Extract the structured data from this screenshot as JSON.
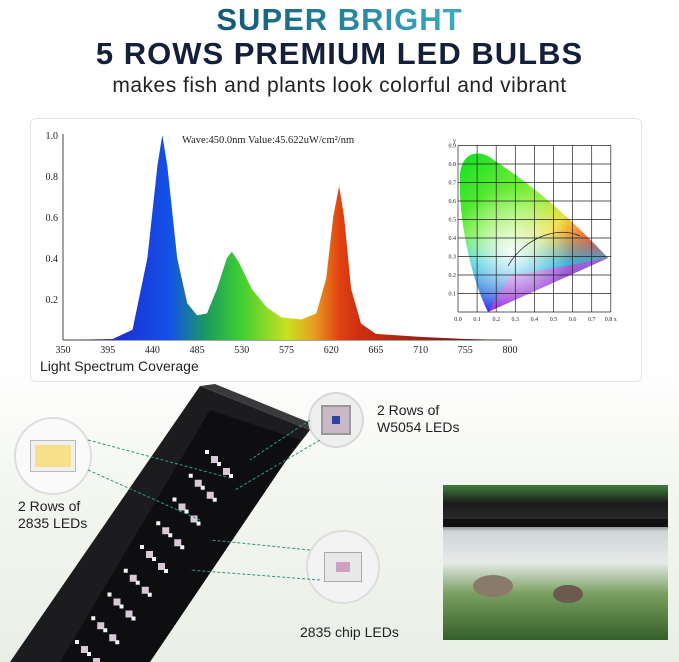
{
  "headline": {
    "line1": "SUPER BRIGHT",
    "line2": "5 ROWS PREMIUM LED BULBS",
    "tagline": "makes fish and plants look colorful and vibrant"
  },
  "spectrum": {
    "readout": "Wave:450.0nm   Value:45.622uW/cm²/nm",
    "caption": "Light Spectrum Coverage",
    "x_ticks": [
      "350",
      "395",
      "440",
      "485",
      "530",
      "575",
      "620",
      "665",
      "710",
      "755",
      "800"
    ],
    "y_ticks": [
      "0.2",
      "0.4",
      "0.6",
      "0.8",
      "1.0"
    ]
  },
  "cie": {
    "x_ticks": [
      "0.0",
      "0.1",
      "0.2",
      "0.3",
      "0.4",
      "0.5",
      "0.6",
      "0.7",
      "0.8 x"
    ],
    "y_ticks": [
      "0.1",
      "0.2",
      "0.3",
      "0.4",
      "0.5",
      "0.6",
      "0.7",
      "0.8",
      "0.9"
    ],
    "y_label": "y"
  },
  "callouts": {
    "w5054": "2 Rows of\nW5054 LEDs",
    "led2835_rows": "2 Rows of\n2835 LEDs",
    "chip2835": "2835 chip LEDs"
  },
  "chart_data": {
    "type": "area",
    "title": "Light Spectrum Coverage",
    "xlabel": "",
    "ylabel": "",
    "xlim": [
      350,
      800
    ],
    "ylim": [
      0,
      1.0
    ],
    "x": [
      350,
      400,
      420,
      435,
      445,
      450,
      455,
      465,
      475,
      485,
      495,
      505,
      515,
      520,
      527,
      540,
      555,
      570,
      590,
      605,
      615,
      622,
      628,
      633,
      640,
      650,
      665,
      710,
      755,
      800
    ],
    "values": [
      0,
      0.005,
      0.05,
      0.4,
      0.85,
      1.0,
      0.85,
      0.4,
      0.18,
      0.12,
      0.13,
      0.25,
      0.4,
      0.43,
      0.38,
      0.25,
      0.16,
      0.11,
      0.1,
      0.13,
      0.3,
      0.6,
      0.75,
      0.6,
      0.25,
      0.08,
      0.03,
      0.015,
      0.005,
      0
    ],
    "peaks": [
      {
        "x": 450,
        "y": 1.0
      },
      {
        "x": 520,
        "y": 0.43
      },
      {
        "x": 628,
        "y": 0.75
      }
    ],
    "grid": false
  }
}
